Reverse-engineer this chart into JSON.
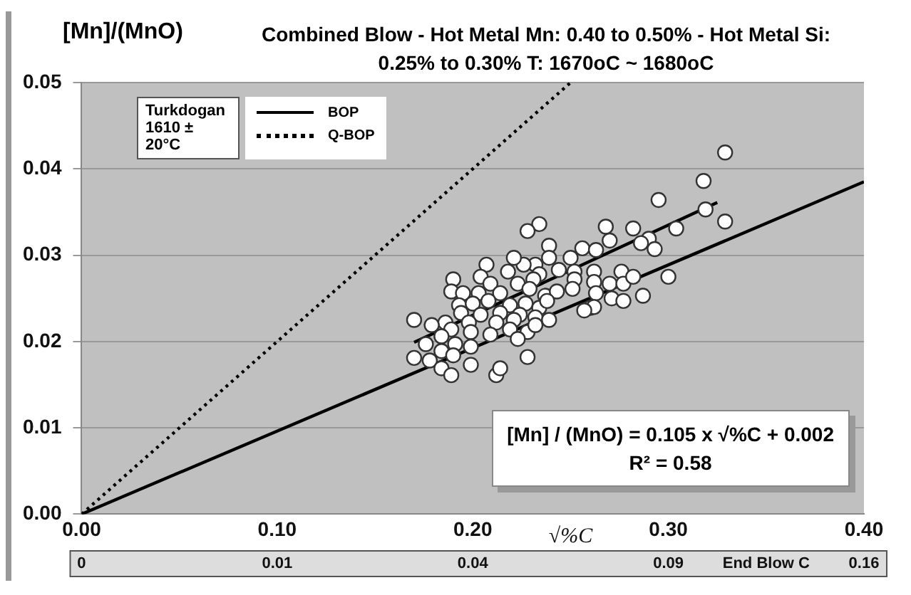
{
  "chart_data": {
    "type": "scatter",
    "title": "Combined Blow - Hot Metal Mn: 0.40 to 0.50% - Hot Metal Si: 0.25% to 0.30% T: 1670oC ~ 1680oC",
    "xlabel": "√%C",
    "ylabel": "[Mn]/(MnO)",
    "legend_title": "Turkdogan 1610 ± 20°C",
    "legend": "top left",
    "grid": "y",
    "marker": "circle",
    "annotations": [
      "[Mn] / (MnO) = 0.105 x √%C + 0.002",
      "R² = 0.58",
      "0",
      "0.01",
      "0.04",
      "0.09",
      "End Blow C",
      "0.16"
    ],
    "xlim": [
      0,
      0.4
    ],
    "xticks": [
      {
        "value": 0,
        "label": "0.00"
      },
      {
        "value": 0.1,
        "label": "0.10"
      },
      {
        "value": 0.2,
        "label": "0.20"
      },
      {
        "value": 0.3,
        "label": "0.30"
      },
      {
        "value": 0.4,
        "label": "0.40"
      }
    ],
    "ylim": [
      0,
      0.05
    ],
    "yticks": [
      {
        "value": 0,
        "label": "0.00"
      },
      {
        "value": 0.01,
        "label": "0.01"
      },
      {
        "value": 0.02,
        "label": "0.02"
      },
      {
        "value": 0.03,
        "label": "0.03"
      },
      {
        "value": 0.04,
        "label": "0.04"
      },
      {
        "value": 0.05,
        "label": "0.05"
      }
    ],
    "series": [
      {
        "color": "#ffffff",
        "x": [
          0.329,
          0.318,
          0.295,
          0.319,
          0.329,
          0.304,
          0.268,
          0.282,
          0.29,
          0.293,
          0.286,
          0.27,
          0.234,
          0.228,
          0.239,
          0.256,
          0.263,
          0.25,
          0.232,
          0.226,
          0.221,
          0.207,
          0.239,
          0.244,
          0.252,
          0.262,
          0.276,
          0.262,
          0.27,
          0.277,
          0.282,
          0.3,
          0.252,
          0.234,
          0.218,
          0.204,
          0.19,
          0.209,
          0.223,
          0.231,
          0.189,
          0.195,
          0.203,
          0.214,
          0.229,
          0.237,
          0.243,
          0.251,
          0.263,
          0.271,
          0.277,
          0.287,
          0.193,
          0.2,
          0.208,
          0.219,
          0.227,
          0.234,
          0.238,
          0.26,
          0.262,
          0.257,
          0.194,
          0.204,
          0.214,
          0.224,
          0.232,
          0.239,
          0.186,
          0.198,
          0.212,
          0.221,
          0.17,
          0.179,
          0.189,
          0.199,
          0.209,
          0.219,
          0.228,
          0.232,
          0.223,
          0.184,
          0.176,
          0.191,
          0.199,
          0.184,
          0.17,
          0.178,
          0.19,
          0.199,
          0.184,
          0.189,
          0.212,
          0.214,
          0.228
        ],
        "values": [
          0.0419,
          0.0386,
          0.0364,
          0.0353,
          0.0339,
          0.0331,
          0.0333,
          0.0331,
          0.0319,
          0.0307,
          0.0314,
          0.0317,
          0.0336,
          0.0328,
          0.0311,
          0.0308,
          0.0306,
          0.0297,
          0.0289,
          0.0289,
          0.0297,
          0.0289,
          0.0297,
          0.0283,
          0.0281,
          0.0281,
          0.0281,
          0.0269,
          0.0267,
          0.0267,
          0.0275,
          0.0275,
          0.0272,
          0.0278,
          0.0281,
          0.0275,
          0.0272,
          0.0267,
          0.0267,
          0.0272,
          0.0258,
          0.0256,
          0.0256,
          0.0256,
          0.0261,
          0.0253,
          0.0258,
          0.0261,
          0.0256,
          0.025,
          0.0247,
          0.0253,
          0.0242,
          0.0244,
          0.0247,
          0.0242,
          0.0244,
          0.0239,
          0.0247,
          0.0239,
          0.024,
          0.0236,
          0.0233,
          0.0231,
          0.0233,
          0.0231,
          0.0228,
          0.0225,
          0.0222,
          0.0222,
          0.0222,
          0.0225,
          0.0225,
          0.0219,
          0.0214,
          0.0211,
          0.0208,
          0.0214,
          0.0211,
          0.0219,
          0.0203,
          0.0206,
          0.0197,
          0.0197,
          0.0194,
          0.0189,
          0.0181,
          0.0178,
          0.0184,
          0.0173,
          0.0169,
          0.0161,
          0.0161,
          0.0169,
          0.0182
        ]
      },
      {
        "type": "line",
        "name": "BOP",
        "color": "#000000",
        "line_style": "solid",
        "marker": "none",
        "x": [
          0,
          0.4
        ],
        "values": [
          0,
          0.0385
        ]
      },
      {
        "type": "line",
        "name": "Q-BOP",
        "color": "#000000",
        "line_style": "dotted",
        "marker": "none",
        "x": [
          0,
          0.25
        ],
        "values": [
          0,
          0.05
        ]
      },
      {
        "type": "line",
        "color": "#000000",
        "line_style": "solid",
        "marker": "none",
        "x": [
          0.17,
          0.325
        ],
        "values": [
          0.0199,
          0.0361
        ]
      }
    ]
  }
}
